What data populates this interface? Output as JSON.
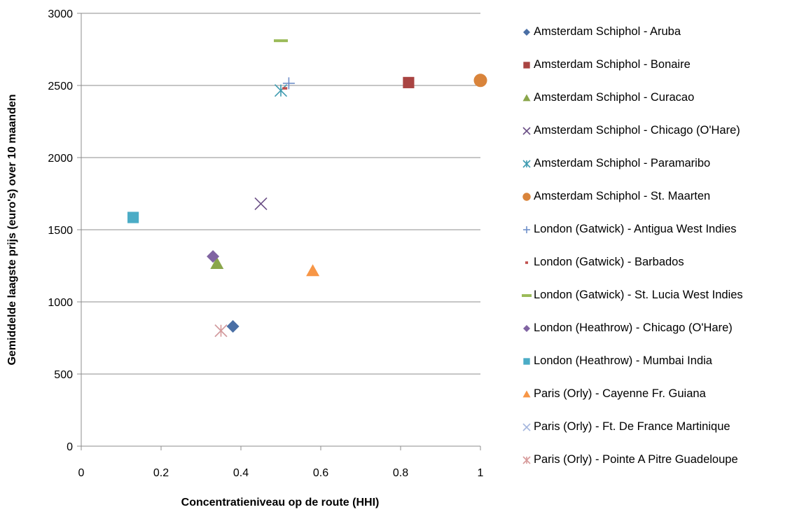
{
  "chart_data": {
    "type": "scatter",
    "title": "",
    "xlabel": "Concentratieniveau op de route (HHI)",
    "ylabel": "Gemiddelde laagste prijs (euro's) over 10 maanden",
    "xlim": [
      0,
      1
    ],
    "ylim": [
      0,
      3000
    ],
    "x_ticks": [
      "0",
      "0.2",
      "0.4",
      "0.6",
      "0.8",
      "1"
    ],
    "y_ticks": [
      "0",
      "500",
      "1000",
      "1500",
      "2000",
      "2500",
      "3000"
    ],
    "grid": "horizontal",
    "legend_position": "right",
    "series": [
      {
        "name": "Amsterdam Schiphol - Aruba",
        "marker": "diamond",
        "color": "#4A6FA5",
        "x": 0.38,
        "y": 830
      },
      {
        "name": "Amsterdam Schiphol - Bonaire",
        "marker": "square",
        "color": "#A94442",
        "x": 0.82,
        "y": 2520
      },
      {
        "name": "Amsterdam Schiphol - Curacao",
        "marker": "triangle",
        "color": "#8AA64B",
        "x": 0.34,
        "y": 1265
      },
      {
        "name": "Amsterdam Schiphol - Chicago (O'Hare)",
        "marker": "x",
        "color": "#6A4E85",
        "x": 0.45,
        "y": 1680
      },
      {
        "name": "Amsterdam Schiphol - Paramaribo",
        "marker": "star",
        "color": "#3E9BB0",
        "x": 0.5,
        "y": 2465
      },
      {
        "name": "Amsterdam Schiphol - St. Maarten",
        "marker": "circle",
        "color": "#D9843B",
        "x": 1.0,
        "y": 2535
      },
      {
        "name": "London (Gatwick)  - Antigua West Indies",
        "marker": "plus",
        "color": "#6F8FC9",
        "x": 0.52,
        "y": 2515
      },
      {
        "name": "London (Gatwick) - Barbados",
        "marker": "dash",
        "color": "#C0504D",
        "x": 0.51,
        "y": 2480
      },
      {
        "name": "London (Gatwick) - St. Lucia West Indies",
        "marker": "longdash",
        "color": "#9BBB59",
        "x": 0.5,
        "y": 2810
      },
      {
        "name": "London (Heathrow) - Chicago (O'Hare)",
        "marker": "diamond",
        "color": "#8064A2",
        "x": 0.33,
        "y": 1315
      },
      {
        "name": "London (Heathrow) - Mumbai India",
        "marker": "square",
        "color": "#4BACC6",
        "x": 0.13,
        "y": 1585
      },
      {
        "name": "Paris (Orly) - Cayenne Fr. Guiana",
        "marker": "triangle",
        "color": "#F79646",
        "x": 0.58,
        "y": 1215
      },
      {
        "name": "Paris (Orly) - Ft. De France Martinique",
        "marker": "x",
        "color": "#A6B7DE",
        "x": 0.35,
        "y": 800
      },
      {
        "name": "Paris (Orly) - Pointe A Pitre Guadeloupe",
        "marker": "star",
        "color": "#D79A9A",
        "x": 0.35,
        "y": 800
      }
    ]
  }
}
